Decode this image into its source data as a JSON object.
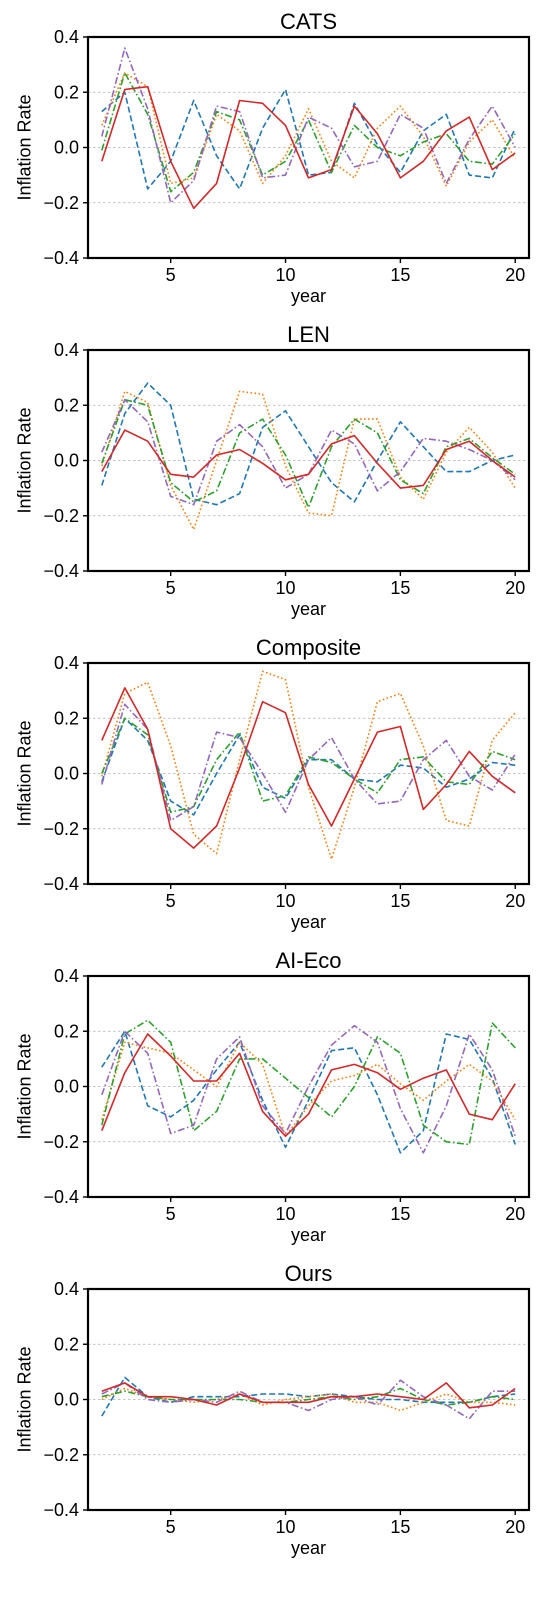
{
  "chart_data": [
    {
      "type": "line",
      "title": "CATS",
      "xlabel": "year",
      "ylabel": "Inflation Rate",
      "xlim": [
        1.4,
        20.6
      ],
      "ylim": [
        -0.4,
        0.4
      ],
      "xticks": [
        5,
        10,
        15,
        20
      ],
      "yticks": [
        -0.4,
        -0.2,
        0.0,
        0.2,
        0.4
      ],
      "grid": "horizontal dotted",
      "x": [
        2,
        3,
        4,
        5,
        6,
        7,
        8,
        9,
        10,
        11,
        12,
        13,
        14,
        15,
        16,
        17,
        18,
        19,
        20
      ],
      "series": [
        {
          "color": "#1f77b4",
          "dash": "dashed",
          "values": [
            0.13,
            0.2,
            -0.15,
            -0.05,
            0.17,
            -0.03,
            -0.15,
            0.07,
            0.21,
            -0.1,
            -0.09,
            0.16,
            0.01,
            -0.09,
            0.06,
            0.12,
            -0.1,
            -0.11,
            0.07
          ]
        },
        {
          "color": "#ff7f0e",
          "dash": "dotted",
          "values": [
            0.08,
            0.27,
            0.22,
            -0.13,
            -0.11,
            0.12,
            0.06,
            -0.13,
            -0.03,
            0.14,
            -0.05,
            -0.11,
            0.07,
            0.15,
            0.04,
            -0.14,
            0.02,
            0.1,
            -0.04
          ]
        },
        {
          "color": "#2ca02c",
          "dash": "dashdot",
          "values": [
            -0.01,
            0.27,
            0.12,
            -0.16,
            -0.09,
            0.13,
            0.1,
            -0.1,
            -0.05,
            0.1,
            -0.09,
            0.08,
            0.0,
            -0.03,
            0.02,
            0.05,
            -0.05,
            -0.06,
            0.05
          ]
        },
        {
          "color": "#9467bd",
          "dash": "dashdot",
          "values": [
            0.04,
            0.36,
            0.14,
            -0.2,
            -0.12,
            0.15,
            0.13,
            -0.11,
            -0.1,
            0.11,
            0.07,
            -0.07,
            -0.05,
            0.12,
            0.07,
            -0.13,
            0.03,
            0.15,
            0.0
          ]
        },
        {
          "color": "#d62728",
          "dash": "solid",
          "values": [
            -0.05,
            0.21,
            0.22,
            -0.05,
            -0.22,
            -0.13,
            0.17,
            0.16,
            0.08,
            -0.11,
            -0.08,
            0.15,
            0.05,
            -0.11,
            -0.05,
            0.06,
            0.11,
            -0.08,
            -0.02
          ]
        }
      ]
    },
    {
      "type": "line",
      "title": "LEN",
      "xlabel": "year",
      "ylabel": "Inflation Rate",
      "xlim": [
        1.4,
        20.6
      ],
      "ylim": [
        -0.4,
        0.4
      ],
      "xticks": [
        5,
        10,
        15,
        20
      ],
      "yticks": [
        -0.4,
        -0.2,
        0.0,
        0.2,
        0.4
      ],
      "grid": "horizontal dotted",
      "x": [
        2,
        3,
        4,
        5,
        6,
        7,
        8,
        9,
        10,
        11,
        12,
        13,
        14,
        15,
        16,
        17,
        18,
        19,
        20
      ],
      "series": [
        {
          "color": "#1f77b4",
          "dash": "dashed",
          "values": [
            -0.09,
            0.17,
            0.28,
            0.2,
            -0.14,
            -0.16,
            -0.12,
            0.12,
            0.18,
            0.05,
            -0.08,
            -0.15,
            0.0,
            0.14,
            0.05,
            -0.04,
            -0.04,
            0.0,
            0.02
          ]
        },
        {
          "color": "#ff7f0e",
          "dash": "dotted",
          "values": [
            -0.02,
            0.25,
            0.21,
            -0.09,
            -0.25,
            0.0,
            0.25,
            0.24,
            -0.02,
            -0.19,
            -0.2,
            0.15,
            0.15,
            -0.06,
            -0.14,
            0.03,
            0.12,
            0.03,
            -0.1
          ]
        },
        {
          "color": "#2ca02c",
          "dash": "dashdot",
          "values": [
            -0.01,
            0.22,
            0.2,
            -0.08,
            -0.15,
            -0.11,
            0.1,
            0.15,
            0.02,
            -0.17,
            0.05,
            0.15,
            0.1,
            -0.07,
            -0.12,
            0.05,
            0.08,
            0.01,
            -0.05
          ]
        },
        {
          "color": "#9467bd",
          "dash": "dashdot",
          "values": [
            0.03,
            0.22,
            0.14,
            -0.13,
            -0.16,
            0.07,
            0.13,
            0.05,
            -0.1,
            -0.05,
            0.11,
            0.06,
            -0.11,
            -0.04,
            0.08,
            0.07,
            0.04,
            0.0,
            -0.07
          ]
        },
        {
          "color": "#d62728",
          "dash": "solid",
          "values": [
            -0.04,
            0.11,
            0.07,
            -0.05,
            -0.06,
            0.02,
            0.04,
            -0.01,
            -0.07,
            -0.05,
            0.06,
            0.09,
            -0.01,
            -0.1,
            -0.09,
            0.04,
            0.07,
            0.0,
            -0.06
          ]
        }
      ]
    },
    {
      "type": "line",
      "title": "Composite",
      "xlabel": "year",
      "ylabel": "Inflation Rate",
      "xlim": [
        1.4,
        20.6
      ],
      "ylim": [
        -0.4,
        0.4
      ],
      "xticks": [
        5,
        10,
        15,
        20
      ],
      "yticks": [
        -0.4,
        -0.2,
        0.0,
        0.2,
        0.4
      ],
      "grid": "horizontal dotted",
      "x": [
        2,
        3,
        4,
        5,
        6,
        7,
        8,
        9,
        10,
        11,
        12,
        13,
        14,
        15,
        16,
        17,
        18,
        19,
        20
      ],
      "series": [
        {
          "color": "#1f77b4",
          "dash": "dashed",
          "values": [
            -0.03,
            0.2,
            0.12,
            -0.1,
            -0.15,
            0.0,
            0.14,
            -0.05,
            -0.09,
            0.05,
            0.05,
            -0.02,
            -0.03,
            0.03,
            0.02,
            -0.05,
            -0.02,
            0.04,
            0.03
          ]
        },
        {
          "color": "#ff7f0e",
          "dash": "dotted",
          "values": [
            -0.01,
            0.29,
            0.33,
            0.1,
            -0.22,
            -0.29,
            0.05,
            0.37,
            0.34,
            -0.05,
            -0.31,
            -0.05,
            0.26,
            0.29,
            0.1,
            -0.17,
            -0.19,
            0.12,
            0.22
          ]
        },
        {
          "color": "#2ca02c",
          "dash": "dashdot",
          "values": [
            0.0,
            0.2,
            0.14,
            -0.14,
            -0.12,
            0.05,
            0.15,
            -0.1,
            -0.08,
            0.06,
            0.04,
            -0.02,
            -0.07,
            0.05,
            0.06,
            -0.03,
            -0.04,
            0.08,
            0.05
          ]
        },
        {
          "color": "#9467bd",
          "dash": "dashdot",
          "values": [
            -0.04,
            0.25,
            0.16,
            -0.17,
            -0.12,
            0.15,
            0.13,
            0.0,
            -0.14,
            0.05,
            0.13,
            -0.02,
            -0.11,
            -0.1,
            0.05,
            0.12,
            -0.01,
            -0.06,
            0.07
          ]
        },
        {
          "color": "#d62728",
          "dash": "solid",
          "values": [
            0.12,
            0.31,
            0.16,
            -0.2,
            -0.27,
            -0.19,
            0.02,
            0.26,
            0.22,
            -0.04,
            -0.19,
            -0.02,
            0.15,
            0.17,
            -0.13,
            -0.04,
            0.08,
            -0.01,
            -0.07
          ]
        }
      ]
    },
    {
      "type": "line",
      "title": "AI-Eco",
      "xlabel": "year",
      "ylabel": "Inflation Rate",
      "xlim": [
        1.4,
        20.6
      ],
      "ylim": [
        -0.4,
        0.4
      ],
      "xticks": [
        5,
        10,
        15,
        20
      ],
      "yticks": [
        -0.4,
        -0.2,
        0.0,
        0.2,
        0.4
      ],
      "grid": "horizontal dotted",
      "x": [
        2,
        3,
        4,
        5,
        6,
        7,
        8,
        9,
        10,
        11,
        12,
        13,
        14,
        15,
        16,
        17,
        18,
        19,
        20
      ],
      "series": [
        {
          "color": "#1f77b4",
          "dash": "dashed",
          "values": [
            0.07,
            0.2,
            -0.07,
            -0.11,
            -0.05,
            0.06,
            0.16,
            -0.05,
            -0.22,
            -0.05,
            0.13,
            0.14,
            -0.03,
            -0.24,
            -0.16,
            0.19,
            0.17,
            0.03,
            -0.21
          ]
        },
        {
          "color": "#ff7f0e",
          "dash": "dotted",
          "values": [
            -0.12,
            0.16,
            0.14,
            0.12,
            0.06,
            0.0,
            0.16,
            0.08,
            -0.18,
            -0.07,
            0.02,
            0.04,
            0.08,
            0.01,
            -0.05,
            0.02,
            0.08,
            0.02,
            -0.12
          ]
        },
        {
          "color": "#2ca02c",
          "dash": "dashdot",
          "values": [
            -0.14,
            0.19,
            0.24,
            0.16,
            -0.16,
            -0.09,
            0.1,
            0.1,
            0.03,
            -0.04,
            -0.11,
            0.0,
            0.18,
            0.12,
            -0.14,
            -0.2,
            -0.21,
            0.23,
            0.14
          ]
        },
        {
          "color": "#9467bd",
          "dash": "dashdot",
          "values": [
            -0.03,
            0.2,
            0.12,
            -0.17,
            -0.14,
            0.1,
            0.18,
            -0.07,
            -0.17,
            0.0,
            0.15,
            0.22,
            0.16,
            -0.08,
            -0.24,
            -0.07,
            0.19,
            0.06,
            -0.18
          ]
        },
        {
          "color": "#d62728",
          "dash": "solid",
          "values": [
            -0.16,
            0.05,
            0.19,
            0.11,
            0.02,
            0.02,
            0.12,
            -0.09,
            -0.18,
            -0.1,
            0.06,
            0.08,
            0.05,
            -0.01,
            0.03,
            0.06,
            -0.1,
            -0.12,
            0.01
          ]
        }
      ]
    },
    {
      "type": "line",
      "title": "Ours",
      "xlabel": "year",
      "ylabel": "Inflation Rate",
      "xlim": [
        1.4,
        20.6
      ],
      "ylim": [
        -0.4,
        0.4
      ],
      "xticks": [
        5,
        10,
        15,
        20
      ],
      "yticks": [
        -0.4,
        -0.2,
        0.0,
        0.2,
        0.4
      ],
      "grid": "horizontal dotted",
      "x": [
        2,
        3,
        4,
        5,
        6,
        7,
        8,
        9,
        10,
        11,
        12,
        13,
        14,
        15,
        16,
        17,
        18,
        19,
        20
      ],
      "series": [
        {
          "color": "#1f77b4",
          "dash": "dashed",
          "values": [
            -0.06,
            0.08,
            0.01,
            -0.01,
            0.01,
            0.01,
            0.01,
            0.02,
            0.02,
            0.01,
            0.02,
            0.01,
            0.0,
            0.0,
            -0.01,
            -0.01,
            -0.01,
            0.01,
            0.02
          ]
        },
        {
          "color": "#ff7f0e",
          "dash": "dotted",
          "values": [
            0.0,
            0.04,
            0.01,
            0.0,
            -0.01,
            0.0,
            0.02,
            -0.02,
            0.0,
            0.01,
            0.02,
            -0.01,
            -0.01,
            -0.04,
            -0.01,
            0.02,
            -0.01,
            -0.01,
            -0.02
          ]
        },
        {
          "color": "#2ca02c",
          "dash": "dashdot",
          "values": [
            0.01,
            0.03,
            0.01,
            0.0,
            0.0,
            0.0,
            0.0,
            -0.01,
            -0.01,
            0.0,
            0.01,
            0.0,
            0.01,
            0.04,
            0.0,
            -0.02,
            -0.01,
            0.01,
            0.0
          ]
        },
        {
          "color": "#9467bd",
          "dash": "dashdot",
          "values": [
            0.02,
            0.06,
            0.0,
            -0.01,
            0.0,
            -0.01,
            0.03,
            -0.01,
            -0.01,
            -0.04,
            0.0,
            0.01,
            -0.02,
            0.07,
            0.01,
            -0.02,
            -0.07,
            0.03,
            0.03
          ]
        },
        {
          "color": "#d62728",
          "dash": "solid",
          "values": [
            0.03,
            0.06,
            0.01,
            0.01,
            0.0,
            -0.02,
            0.02,
            -0.01,
            -0.01,
            -0.01,
            0.01,
            0.01,
            0.02,
            0.01,
            0.0,
            0.06,
            -0.03,
            -0.02,
            0.04
          ]
        }
      ]
    }
  ]
}
